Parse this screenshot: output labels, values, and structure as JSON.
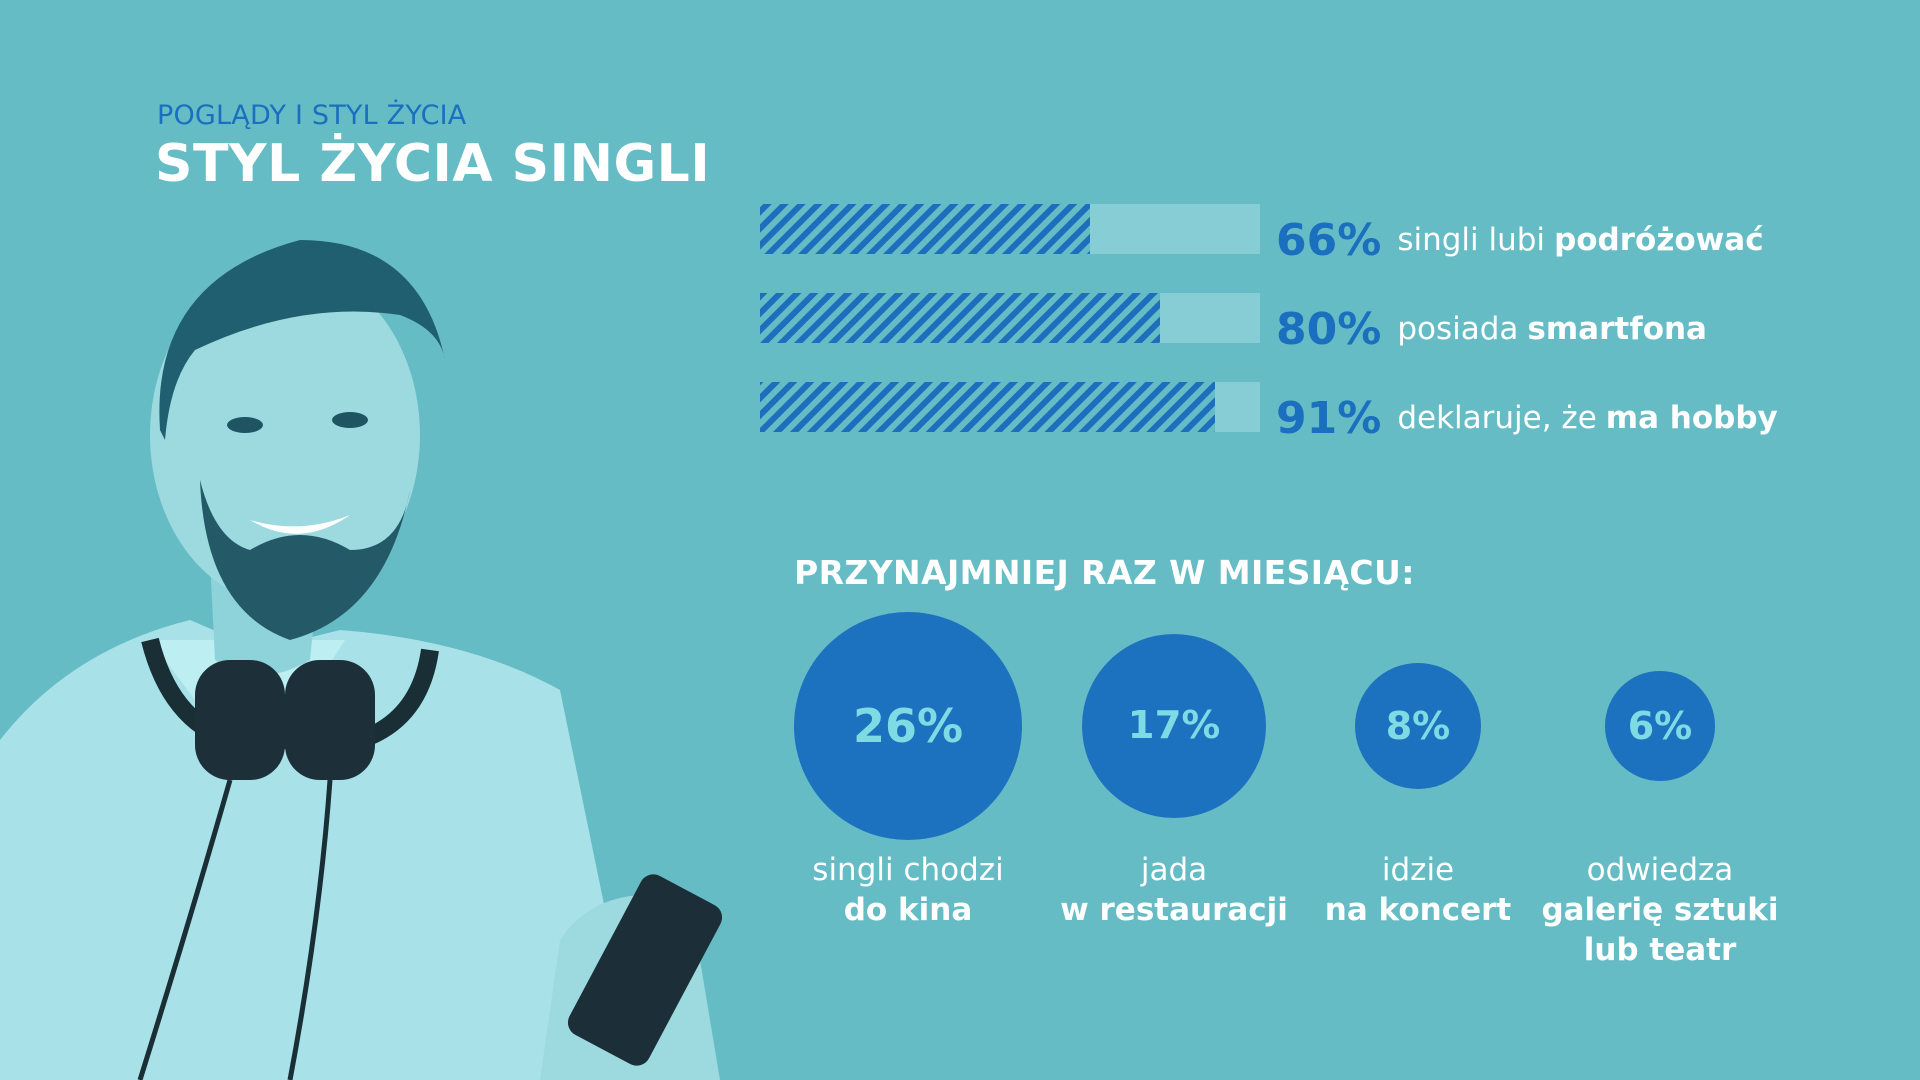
{
  "header": {
    "kicker": "POGLĄDY I STYL ŻYCIA",
    "title": "STYL ŻYCIA SINGLI"
  },
  "colors": {
    "background": "#66bcc5",
    "accent": "#1a6fbf",
    "bubble": "#1d72c0",
    "bubble_text": "#7fdbe3",
    "track": "#86cdd5"
  },
  "chart_data": [
    {
      "type": "bar",
      "orientation": "horizontal",
      "xlim": [
        0,
        100
      ],
      "items": [
        {
          "value": 66,
          "value_label": "66%",
          "text": "singli lubi",
          "text_bold": "podróżować"
        },
        {
          "value": 80,
          "value_label": "80%",
          "text": "posiada",
          "text_bold": "smartfona"
        },
        {
          "value": 91,
          "value_label": "91%",
          "text": "deklaruje, że",
          "text_bold": "ma hobby"
        }
      ]
    },
    {
      "type": "bubble",
      "title": "PRZYNAJMNIEJ RAZ W MIESIĄCU:",
      "items": [
        {
          "value": 26,
          "value_label": "26%",
          "line1": "singli chodzi",
          "line2": "do kina",
          "line3": ""
        },
        {
          "value": 17,
          "value_label": "17%",
          "line1": "jada",
          "line2": "w restauracji",
          "line3": ""
        },
        {
          "value": 8,
          "value_label": "8%",
          "line1": "idzie",
          "line2": "na koncert",
          "line3": ""
        },
        {
          "value": 6,
          "value_label": "6%",
          "line1": "odwiedza",
          "line2": "galerię sztuki",
          "line3": "lub teatr"
        }
      ]
    }
  ]
}
